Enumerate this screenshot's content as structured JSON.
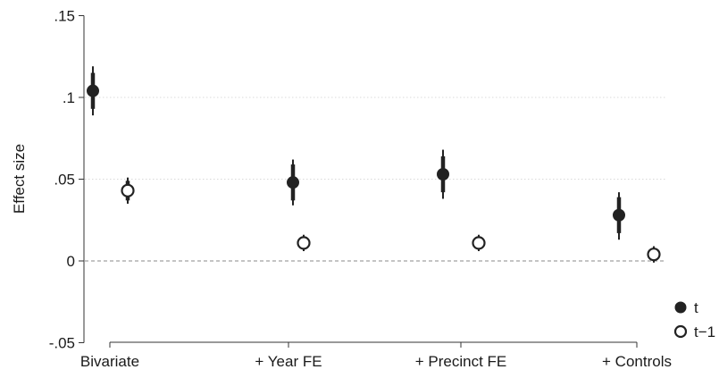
{
  "chart_data": {
    "type": "scatter",
    "title": "",
    "xlabel": "",
    "ylabel": "Effect size",
    "categories": [
      "Bivariate",
      "+ Year FE",
      "+ Precinct FE",
      "+ Controls"
    ],
    "ylim": [
      -0.05,
      0.15
    ],
    "yticks": [
      {
        "value": -0.05,
        "label": "-.05"
      },
      {
        "value": 0,
        "label": "0"
      },
      {
        "value": 0.05,
        "label": ".05"
      },
      {
        "value": 0.1,
        "label": ".1"
      },
      {
        "value": 0.15,
        "label": ".15"
      }
    ],
    "grid": "horizontal dotted at .05 and .1",
    "reference_line": {
      "value": 0,
      "style": "dashed"
    },
    "legend_position": "right-bottom",
    "series": [
      {
        "name": "t",
        "marker": "filled-circle",
        "color": "#222222",
        "estimates": [
          0.104,
          0.048,
          0.053,
          0.028
        ],
        "ci90": [
          [
            0.093,
            0.115
          ],
          [
            0.037,
            0.059
          ],
          [
            0.042,
            0.064
          ],
          [
            0.017,
            0.039
          ]
        ],
        "ci95": [
          [
            0.089,
            0.119
          ],
          [
            0.034,
            0.062
          ],
          [
            0.038,
            0.068
          ],
          [
            0.013,
            0.042
          ]
        ]
      },
      {
        "name": "t−1",
        "marker": "hollow-circle",
        "color": "#222222",
        "estimates": [
          0.043,
          0.011,
          0.011,
          0.004
        ],
        "ci90": [
          [
            0.037,
            0.049
          ],
          [
            0.008,
            0.014
          ],
          [
            0.008,
            0.014
          ],
          [
            0.001,
            0.007
          ]
        ],
        "ci95": [
          [
            0.035,
            0.051
          ],
          [
            0.006,
            0.016
          ],
          [
            0.006,
            0.016
          ],
          [
            -0.001,
            0.009
          ]
        ]
      }
    ]
  }
}
